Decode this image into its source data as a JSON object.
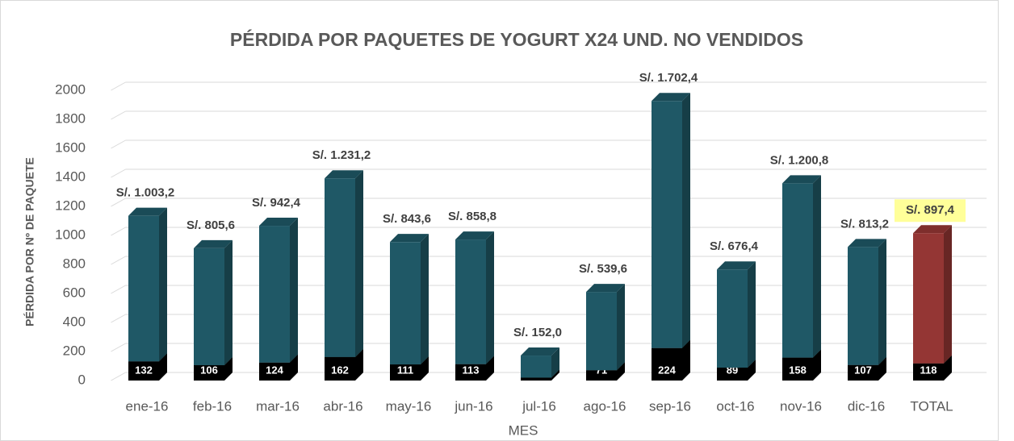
{
  "chart_data": {
    "type": "bar3d_stacked",
    "title": "PÉRDIDA  POR PAQUETES DE YOGURT X24 UND. NO VENDIDOS",
    "xlabel": "MES",
    "ylabel": "PÉRDIDA POR Nº DE PAQUETE",
    "categories": [
      "ene-16",
      "feb-16",
      "mar-16",
      "abr-16",
      "may-16",
      "jun-16",
      "jul-16",
      "ago-16",
      "sep-16",
      "oct-16",
      "nov-16",
      "dic-16",
      "TOTAL"
    ],
    "series": [
      {
        "color": "#000000",
        "values": [
          132,
          106,
          124,
          162,
          111,
          113,
          20,
          71,
          224,
          89,
          158,
          107,
          118
        ]
      },
      {
        "color": "#1f5866",
        "colors": [
          "#1f5866",
          "#1f5866",
          "#1f5866",
          "#1f5866",
          "#1f5866",
          "#1f5866",
          "#1f5866",
          "#1f5866",
          "#1f5866",
          "#1f5866",
          "#1f5866",
          "#1f5866",
          "#943634"
        ],
        "values": [
          1003.2,
          805.6,
          942.4,
          1231.2,
          843.6,
          858.8,
          152.0,
          539.6,
          1702.4,
          676.4,
          1200.8,
          813.2,
          897.4
        ],
        "value_labels": [
          "S/. 1.003,2",
          "S/. 805,6",
          "S/. 942,4",
          "S/. 1.231,2",
          "S/. 843,6",
          "S/. 858,8",
          "S/. 152,0",
          "S/. 539,6",
          "S/. 1.702,4",
          "S/. 676,4",
          "S/. 1.200,8",
          "S/. 813,2",
          "S/. 897,4"
        ],
        "label_highlight": "#ffff99"
      }
    ],
    "ylim": [
      0,
      2000
    ],
    "yticks": [
      0,
      200,
      400,
      600,
      800,
      1000,
      1200,
      1400,
      1600,
      1800,
      2000
    ],
    "grid": true
  }
}
